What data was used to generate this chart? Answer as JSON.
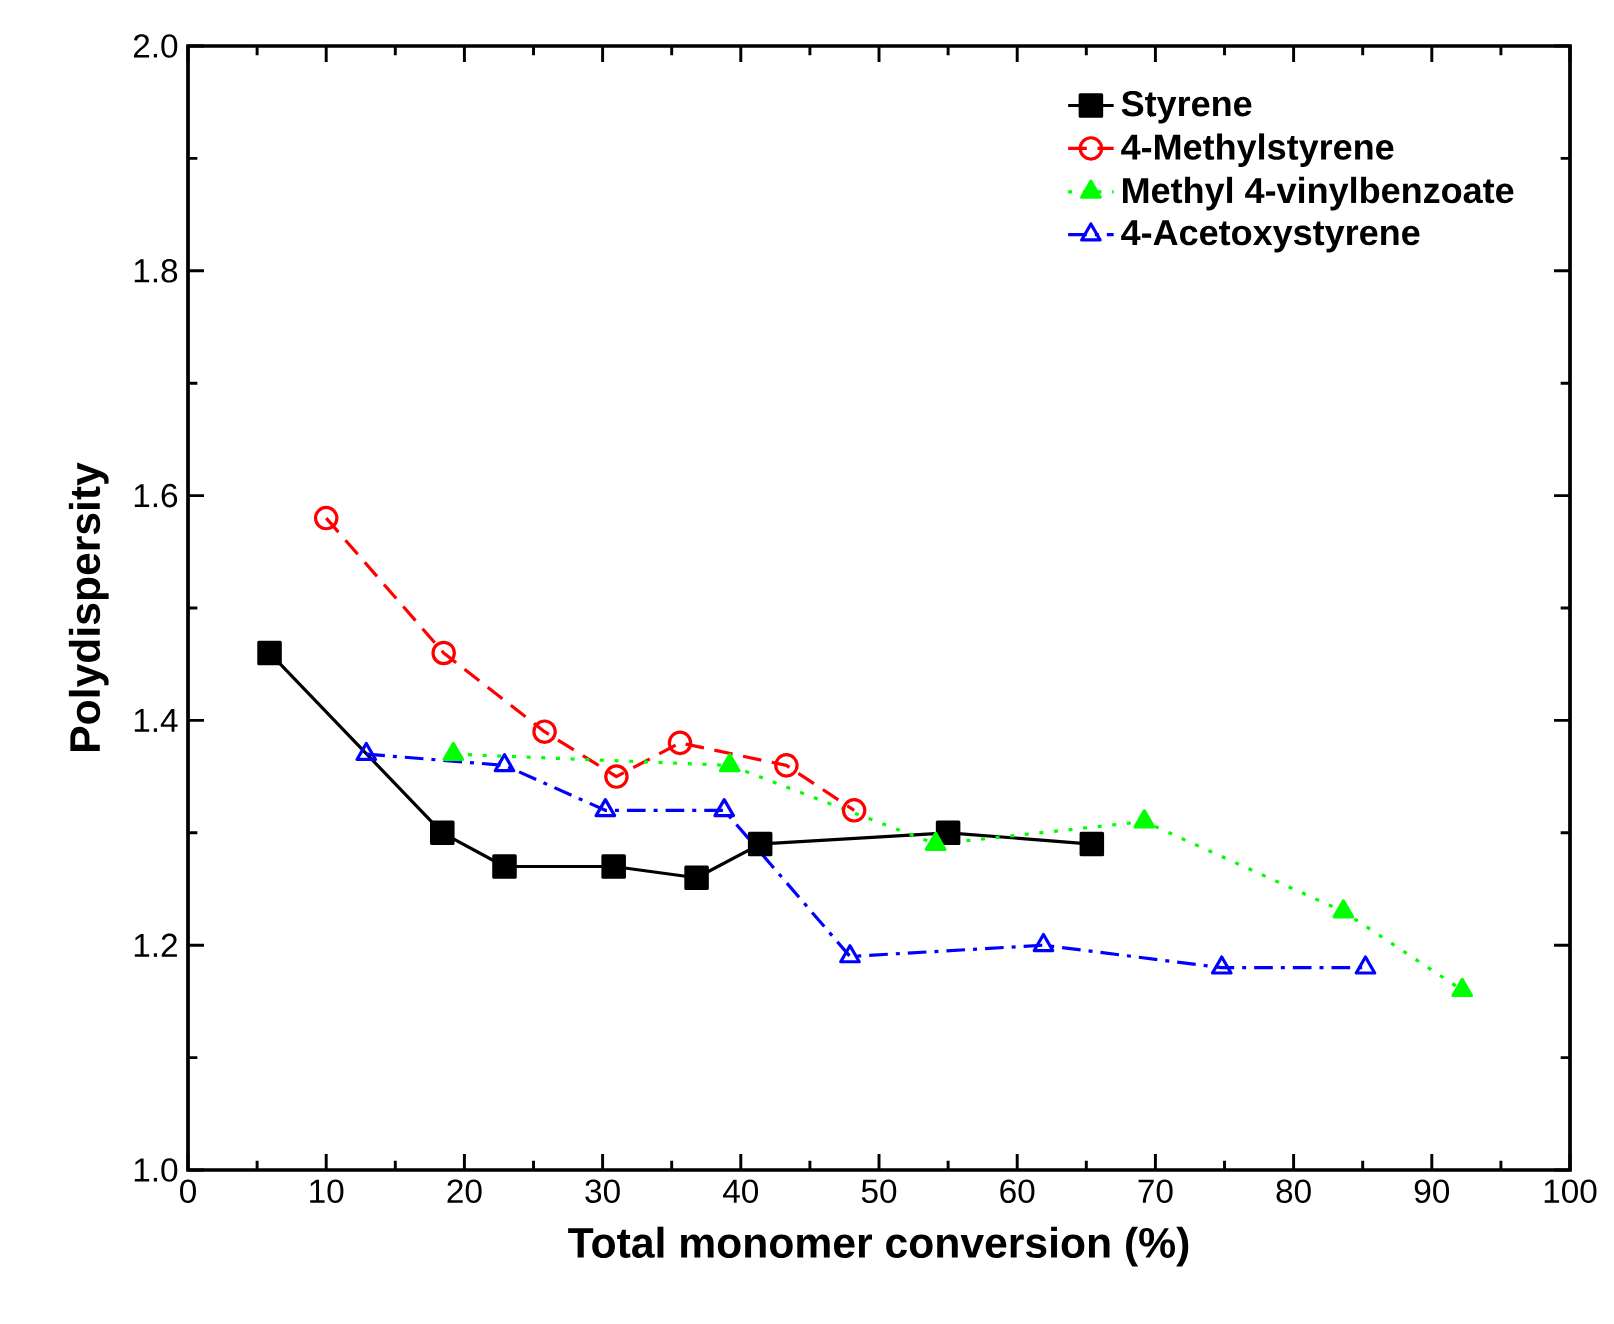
{
  "chart_data": {
    "type": "line",
    "xlabel": "Total monomer conversion (%)",
    "ylabel": "Polydispersity",
    "xlim": [
      0,
      100
    ],
    "xticks": [
      0,
      10,
      20,
      30,
      40,
      50,
      60,
      70,
      80,
      90,
      100
    ],
    "ylim": [
      1.0,
      2.0
    ],
    "yticks": [
      {
        "value": 1.0,
        "label": "1.0"
      },
      {
        "value": 1.2,
        "label": "1.2"
      },
      {
        "value": 1.4,
        "label": "1.4"
      },
      {
        "value": 1.6,
        "label": "1.6"
      },
      {
        "value": 1.8,
        "label": "1.8"
      },
      {
        "value": 2.0,
        "label": "2.0"
      }
    ],
    "legend": "top right",
    "series": [
      {
        "name": "Styrene",
        "color": "#000000",
        "marker": "square",
        "line_style": "solid",
        "x": [
          5.9,
          18.4,
          22.9,
          30.8,
          36.8,
          41.4,
          55.0,
          65.4
        ],
        "values": [
          1.46,
          1.3,
          1.27,
          1.27,
          1.26,
          1.29,
          1.3,
          1.29
        ]
      },
      {
        "name": "4-Methylstyrene",
        "color": "#ff0000",
        "marker": "circle",
        "line_style": "dashed",
        "x": [
          10.0,
          18.5,
          25.8,
          31.0,
          35.6,
          43.3,
          48.2
        ],
        "values": [
          1.58,
          1.46,
          1.39,
          1.35,
          1.38,
          1.36,
          1.32
        ]
      },
      {
        "name": "Methyl 4-vinylbenzoate",
        "color": "#00ff00",
        "marker": "triangle",
        "line_style": "dotted",
        "x": [
          19.2,
          39.2,
          54.1,
          69.2,
          83.6,
          92.2
        ],
        "values": [
          1.37,
          1.36,
          1.29,
          1.31,
          1.23,
          1.16
        ]
      },
      {
        "name": "4-Acetoxystyrene",
        "color": "#0000ff",
        "marker": "triangle",
        "line_style": "dashdot",
        "x": [
          12.9,
          22.9,
          30.2,
          38.8,
          47.9,
          61.9,
          74.8,
          85.2
        ],
        "values": [
          1.37,
          1.36,
          1.32,
          1.32,
          1.19,
          1.2,
          1.18,
          1.18
        ]
      }
    ]
  }
}
